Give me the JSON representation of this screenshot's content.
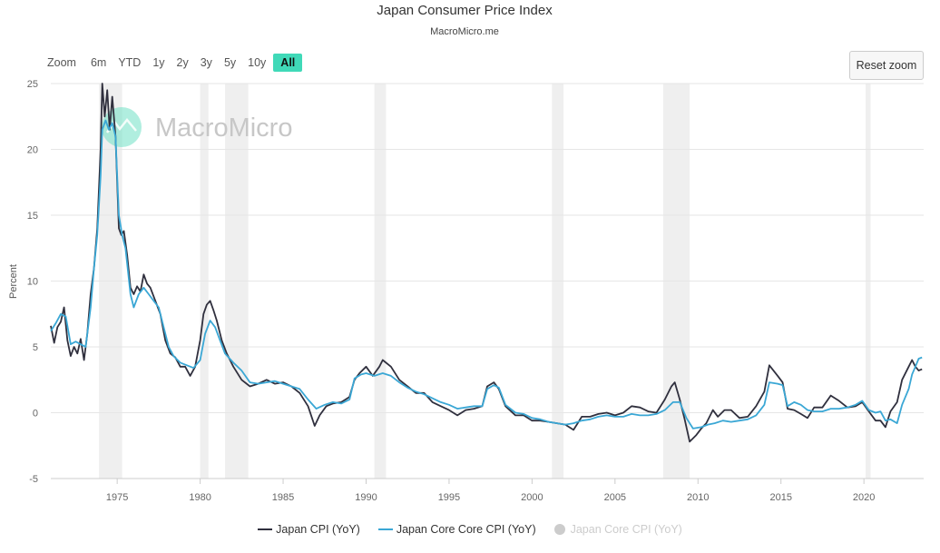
{
  "title": "Japan Consumer Price Index",
  "subtitle": "MacroMicro.me",
  "watermark": "MacroMicro",
  "range_selector": {
    "label": "Zoom",
    "buttons": [
      "6m",
      "YTD",
      "1y",
      "2y",
      "3y",
      "5y",
      "10y",
      "All"
    ],
    "selected": "All"
  },
  "reset_zoom_label": "Reset zoom",
  "colors": {
    "cpi": "#30303e",
    "core_core": "#3aa7d5",
    "recession": "#efefef",
    "active_button": "#40d9b8",
    "hidden_series": "#cccccc"
  },
  "legend": [
    {
      "name": "Japan CPI (YoY)",
      "color": "#30303e",
      "visible": true
    },
    {
      "name": "Japan Core Core CPI (YoY)",
      "color": "#3aa7d5",
      "visible": true
    },
    {
      "name": "Japan Core CPI (YoY)",
      "color": "#cccccc",
      "visible": false
    }
  ],
  "chart_data": {
    "type": "line",
    "title": "Japan Consumer Price Index",
    "ylabel": "Percent",
    "xlabel": "",
    "xlim": [
      1971.0,
      2023.6
    ],
    "ylim": [
      -5,
      25
    ],
    "x_ticks": [
      1975,
      1980,
      1985,
      1990,
      1995,
      2000,
      2005,
      2010,
      2015,
      2020
    ],
    "y_ticks": [
      -5,
      0,
      5,
      10,
      15,
      20,
      25
    ],
    "grid": "horizontal",
    "legend_position": "bottom",
    "recession_bands": [
      [
        1973.9,
        1975.3
      ],
      [
        1980.0,
        1980.5
      ],
      [
        1981.5,
        1982.9
      ],
      [
        1990.5,
        1991.2
      ],
      [
        2001.2,
        2001.9
      ],
      [
        2007.9,
        2009.5
      ],
      [
        2020.1,
        2020.4
      ]
    ],
    "series": [
      {
        "name": "Japan CPI (YoY)",
        "points": [
          [
            1971.0,
            6.6
          ],
          [
            1971.2,
            5.3
          ],
          [
            1971.4,
            6.5
          ],
          [
            1971.6,
            6.9
          ],
          [
            1971.8,
            8.0
          ],
          [
            1972.0,
            5.5
          ],
          [
            1972.2,
            4.3
          ],
          [
            1972.4,
            5.0
          ],
          [
            1972.6,
            4.5
          ],
          [
            1972.8,
            5.6
          ],
          [
            1973.0,
            4.0
          ],
          [
            1973.2,
            6.0
          ],
          [
            1973.4,
            9.0
          ],
          [
            1973.6,
            11.0
          ],
          [
            1973.8,
            14.0
          ],
          [
            1974.0,
            20.0
          ],
          [
            1974.1,
            25.0
          ],
          [
            1974.25,
            22.5
          ],
          [
            1974.4,
            24.5
          ],
          [
            1974.55,
            21.5
          ],
          [
            1974.7,
            24.0
          ],
          [
            1974.9,
            21.0
          ],
          [
            1975.1,
            14.0
          ],
          [
            1975.25,
            13.5
          ],
          [
            1975.4,
            13.8
          ],
          [
            1975.6,
            12.0
          ],
          [
            1975.8,
            9.5
          ],
          [
            1976.0,
            9.0
          ],
          [
            1976.2,
            9.6
          ],
          [
            1976.4,
            9.2
          ],
          [
            1976.6,
            10.5
          ],
          [
            1976.8,
            9.8
          ],
          [
            1977.0,
            9.5
          ],
          [
            1977.3,
            8.5
          ],
          [
            1977.6,
            7.5
          ],
          [
            1977.9,
            5.5
          ],
          [
            1978.2,
            4.5
          ],
          [
            1978.5,
            4.2
          ],
          [
            1978.8,
            3.5
          ],
          [
            1979.1,
            3.5
          ],
          [
            1979.4,
            2.8
          ],
          [
            1979.7,
            3.5
          ],
          [
            1980.0,
            5.5
          ],
          [
            1980.2,
            7.5
          ],
          [
            1980.4,
            8.2
          ],
          [
            1980.6,
            8.5
          ],
          [
            1980.8,
            7.8
          ],
          [
            1981.0,
            7.0
          ],
          [
            1981.3,
            5.5
          ],
          [
            1981.6,
            4.5
          ],
          [
            1982.0,
            3.5
          ],
          [
            1982.5,
            2.5
          ],
          [
            1983.0,
            2.0
          ],
          [
            1983.5,
            2.2
          ],
          [
            1984.0,
            2.5
          ],
          [
            1984.5,
            2.2
          ],
          [
            1985.0,
            2.3
          ],
          [
            1985.5,
            2.0
          ],
          [
            1986.0,
            1.5
          ],
          [
            1986.5,
            0.5
          ],
          [
            1986.9,
            -1.0
          ],
          [
            1987.2,
            -0.2
          ],
          [
            1987.6,
            0.5
          ],
          [
            1988.0,
            0.7
          ],
          [
            1988.5,
            0.8
          ],
          [
            1989.0,
            1.2
          ],
          [
            1989.3,
            2.5
          ],
          [
            1989.6,
            3.0
          ],
          [
            1990.0,
            3.5
          ],
          [
            1990.4,
            2.8
          ],
          [
            1990.8,
            3.5
          ],
          [
            1991.0,
            4.0
          ],
          [
            1991.5,
            3.5
          ],
          [
            1992.0,
            2.5
          ],
          [
            1992.5,
            2.0
          ],
          [
            1993.0,
            1.5
          ],
          [
            1993.5,
            1.5
          ],
          [
            1994.0,
            0.8
          ],
          [
            1994.5,
            0.5
          ],
          [
            1995.0,
            0.2
          ],
          [
            1995.5,
            -0.2
          ],
          [
            1996.0,
            0.2
          ],
          [
            1996.5,
            0.3
          ],
          [
            1997.0,
            0.5
          ],
          [
            1997.3,
            2.0
          ],
          [
            1997.7,
            2.3
          ],
          [
            1998.0,
            1.8
          ],
          [
            1998.4,
            0.5
          ],
          [
            1999.0,
            -0.2
          ],
          [
            1999.5,
            -0.2
          ],
          [
            2000.0,
            -0.6
          ],
          [
            2000.5,
            -0.6
          ],
          [
            2001.0,
            -0.7
          ],
          [
            2001.5,
            -0.8
          ],
          [
            2002.0,
            -0.9
          ],
          [
            2002.5,
            -1.3
          ],
          [
            2003.0,
            -0.3
          ],
          [
            2003.5,
            -0.3
          ],
          [
            2004.0,
            -0.1
          ],
          [
            2004.5,
            0.0
          ],
          [
            2005.0,
            -0.2
          ],
          [
            2005.5,
            0.0
          ],
          [
            2006.0,
            0.5
          ],
          [
            2006.5,
            0.4
          ],
          [
            2007.0,
            0.1
          ],
          [
            2007.5,
            0.0
          ],
          [
            2008.0,
            1.0
          ],
          [
            2008.4,
            2.0
          ],
          [
            2008.6,
            2.3
          ],
          [
            2008.9,
            1.0
          ],
          [
            2009.2,
            -0.5
          ],
          [
            2009.5,
            -2.2
          ],
          [
            2009.9,
            -1.7
          ],
          [
            2010.2,
            -1.2
          ],
          [
            2010.5,
            -0.8
          ],
          [
            2010.9,
            0.2
          ],
          [
            2011.2,
            -0.3
          ],
          [
            2011.6,
            0.2
          ],
          [
            2012.0,
            0.2
          ],
          [
            2012.5,
            -0.4
          ],
          [
            2013.0,
            -0.3
          ],
          [
            2013.5,
            0.5
          ],
          [
            2014.0,
            1.6
          ],
          [
            2014.3,
            3.6
          ],
          [
            2014.8,
            2.8
          ],
          [
            2015.1,
            2.3
          ],
          [
            2015.4,
            0.3
          ],
          [
            2015.8,
            0.2
          ],
          [
            2016.2,
            -0.1
          ],
          [
            2016.6,
            -0.4
          ],
          [
            2017.0,
            0.4
          ],
          [
            2017.5,
            0.4
          ],
          [
            2018.0,
            1.3
          ],
          [
            2018.5,
            0.9
          ],
          [
            2019.0,
            0.4
          ],
          [
            2019.5,
            0.5
          ],
          [
            2019.9,
            0.8
          ],
          [
            2020.3,
            0.1
          ],
          [
            2020.7,
            -0.6
          ],
          [
            2021.0,
            -0.6
          ],
          [
            2021.3,
            -1.1
          ],
          [
            2021.6,
            0.1
          ],
          [
            2022.0,
            0.8
          ],
          [
            2022.3,
            2.5
          ],
          [
            2022.7,
            3.5
          ],
          [
            2022.9,
            4.0
          ],
          [
            2023.1,
            3.5
          ],
          [
            2023.3,
            3.2
          ],
          [
            2023.5,
            3.3
          ]
        ]
      },
      {
        "name": "Japan Core Core CPI (YoY)",
        "points": [
          [
            1971.0,
            6.2
          ],
          [
            1971.3,
            6.8
          ],
          [
            1971.6,
            7.5
          ],
          [
            1971.9,
            7.3
          ],
          [
            1972.2,
            5.2
          ],
          [
            1972.5,
            5.4
          ],
          [
            1972.8,
            5.2
          ],
          [
            1973.1,
            5.0
          ],
          [
            1973.4,
            8.0
          ],
          [
            1973.6,
            11.0
          ],
          [
            1973.8,
            13.5
          ],
          [
            1974.0,
            18.0
          ],
          [
            1974.1,
            21.5
          ],
          [
            1974.3,
            22.2
          ],
          [
            1974.5,
            21.5
          ],
          [
            1974.7,
            22.0
          ],
          [
            1974.9,
            21.0
          ],
          [
            1975.1,
            15.0
          ],
          [
            1975.3,
            13.5
          ],
          [
            1975.5,
            12.5
          ],
          [
            1975.8,
            9.0
          ],
          [
            1976.0,
            8.0
          ],
          [
            1976.3,
            9.0
          ],
          [
            1976.6,
            9.5
          ],
          [
            1976.9,
            9.0
          ],
          [
            1977.2,
            8.5
          ],
          [
            1977.5,
            8.0
          ],
          [
            1977.8,
            6.5
          ],
          [
            1978.1,
            5.0
          ],
          [
            1978.4,
            4.3
          ],
          [
            1978.8,
            3.8
          ],
          [
            1979.2,
            3.6
          ],
          [
            1979.6,
            3.4
          ],
          [
            1980.0,
            4.0
          ],
          [
            1980.3,
            6.0
          ],
          [
            1980.6,
            7.0
          ],
          [
            1980.9,
            6.5
          ],
          [
            1981.2,
            5.5
          ],
          [
            1981.5,
            4.5
          ],
          [
            1982.0,
            3.8
          ],
          [
            1982.5,
            3.2
          ],
          [
            1983.0,
            2.3
          ],
          [
            1983.5,
            2.2
          ],
          [
            1984.0,
            2.3
          ],
          [
            1984.5,
            2.4
          ],
          [
            1985.0,
            2.2
          ],
          [
            1985.5,
            2.0
          ],
          [
            1986.0,
            1.8
          ],
          [
            1986.5,
            1.0
          ],
          [
            1987.0,
            0.3
          ],
          [
            1987.5,
            0.6
          ],
          [
            1988.0,
            0.8
          ],
          [
            1988.5,
            0.7
          ],
          [
            1989.0,
            1.0
          ],
          [
            1989.3,
            2.6
          ],
          [
            1989.7,
            2.9
          ],
          [
            1990.0,
            3.0
          ],
          [
            1990.5,
            2.8
          ],
          [
            1991.0,
            3.0
          ],
          [
            1991.5,
            2.8
          ],
          [
            1992.0,
            2.3
          ],
          [
            1992.5,
            1.9
          ],
          [
            1993.0,
            1.6
          ],
          [
            1993.5,
            1.4
          ],
          [
            1994.0,
            1.1
          ],
          [
            1994.5,
            0.8
          ],
          [
            1995.0,
            0.6
          ],
          [
            1995.5,
            0.3
          ],
          [
            1996.0,
            0.4
          ],
          [
            1996.5,
            0.5
          ],
          [
            1997.0,
            0.5
          ],
          [
            1997.3,
            1.8
          ],
          [
            1997.7,
            2.1
          ],
          [
            1998.0,
            1.9
          ],
          [
            1998.4,
            0.6
          ],
          [
            1999.0,
            0.0
          ],
          [
            1999.5,
            -0.1
          ],
          [
            2000.0,
            -0.4
          ],
          [
            2000.5,
            -0.5
          ],
          [
            2001.0,
            -0.7
          ],
          [
            2001.5,
            -0.8
          ],
          [
            2002.0,
            -0.9
          ],
          [
            2002.5,
            -0.8
          ],
          [
            2003.0,
            -0.6
          ],
          [
            2003.5,
            -0.5
          ],
          [
            2004.0,
            -0.3
          ],
          [
            2004.5,
            -0.2
          ],
          [
            2005.0,
            -0.3
          ],
          [
            2005.5,
            -0.3
          ],
          [
            2006.0,
            -0.1
          ],
          [
            2006.5,
            -0.2
          ],
          [
            2007.0,
            -0.2
          ],
          [
            2007.5,
            -0.1
          ],
          [
            2008.0,
            0.2
          ],
          [
            2008.5,
            0.8
          ],
          [
            2008.9,
            0.8
          ],
          [
            2009.3,
            -0.4
          ],
          [
            2009.7,
            -1.2
          ],
          [
            2010.2,
            -1.1
          ],
          [
            2010.6,
            -0.9
          ],
          [
            2011.0,
            -0.8
          ],
          [
            2011.5,
            -0.6
          ],
          [
            2012.0,
            -0.7
          ],
          [
            2012.5,
            -0.6
          ],
          [
            2013.0,
            -0.5
          ],
          [
            2013.5,
            -0.2
          ],
          [
            2014.0,
            0.6
          ],
          [
            2014.3,
            2.3
          ],
          [
            2014.8,
            2.2
          ],
          [
            2015.1,
            2.1
          ],
          [
            2015.4,
            0.5
          ],
          [
            2015.8,
            0.8
          ],
          [
            2016.2,
            0.6
          ],
          [
            2016.6,
            0.2
          ],
          [
            2017.0,
            0.1
          ],
          [
            2017.5,
            0.1
          ],
          [
            2018.0,
            0.3
          ],
          [
            2018.5,
            0.3
          ],
          [
            2019.0,
            0.4
          ],
          [
            2019.5,
            0.6
          ],
          [
            2019.9,
            0.9
          ],
          [
            2020.3,
            0.2
          ],
          [
            2020.7,
            0.0
          ],
          [
            2021.0,
            0.1
          ],
          [
            2021.3,
            -0.6
          ],
          [
            2021.6,
            -0.5
          ],
          [
            2022.0,
            -0.8
          ],
          [
            2022.3,
            0.6
          ],
          [
            2022.7,
            1.8
          ],
          [
            2022.9,
            2.9
          ],
          [
            2023.1,
            3.5
          ],
          [
            2023.3,
            4.1
          ],
          [
            2023.5,
            4.2
          ]
        ]
      }
    ]
  }
}
